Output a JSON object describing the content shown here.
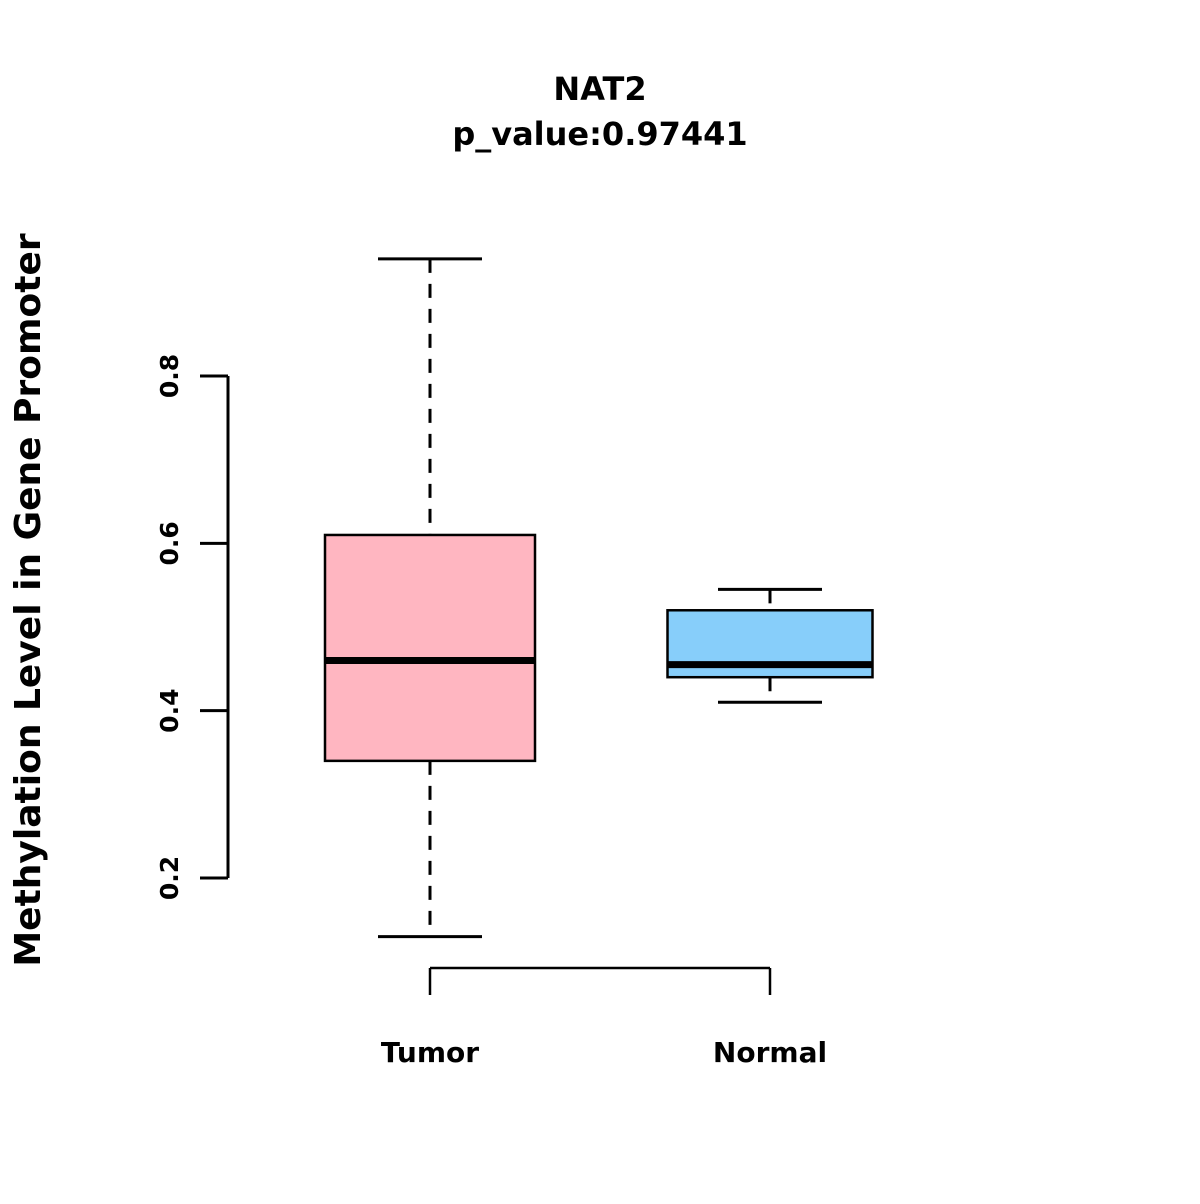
{
  "chart_data": {
    "type": "boxplot",
    "title": "NAT2",
    "subtitle": "p_value:0.97441",
    "ylabel": "Methylation Level in Gene Promoter",
    "xlabel": "",
    "categories": [
      "Tumor",
      "Normal"
    ],
    "yticks": [
      "0.2",
      "0.4",
      "0.6",
      "0.8"
    ],
    "ylim": [
      0.1,
      0.97
    ],
    "grid": false,
    "legend": "none",
    "boxes": [
      {
        "label": "Tumor",
        "color": "#FFB6C1",
        "whisker_low": 0.13,
        "q1": 0.34,
        "median": 0.46,
        "q3": 0.61,
        "whisker_high": 0.94
      },
      {
        "label": "Normal",
        "color": "#87CEFA",
        "whisker_low": 0.41,
        "q1": 0.44,
        "median": 0.455,
        "q3": 0.52,
        "whisker_high": 0.545
      }
    ],
    "colors": {
      "stroke": "#000000",
      "background": "#FFFFFF",
      "tumor_fill": "#FFB6C1",
      "normal_fill": "#87CEFA"
    }
  }
}
